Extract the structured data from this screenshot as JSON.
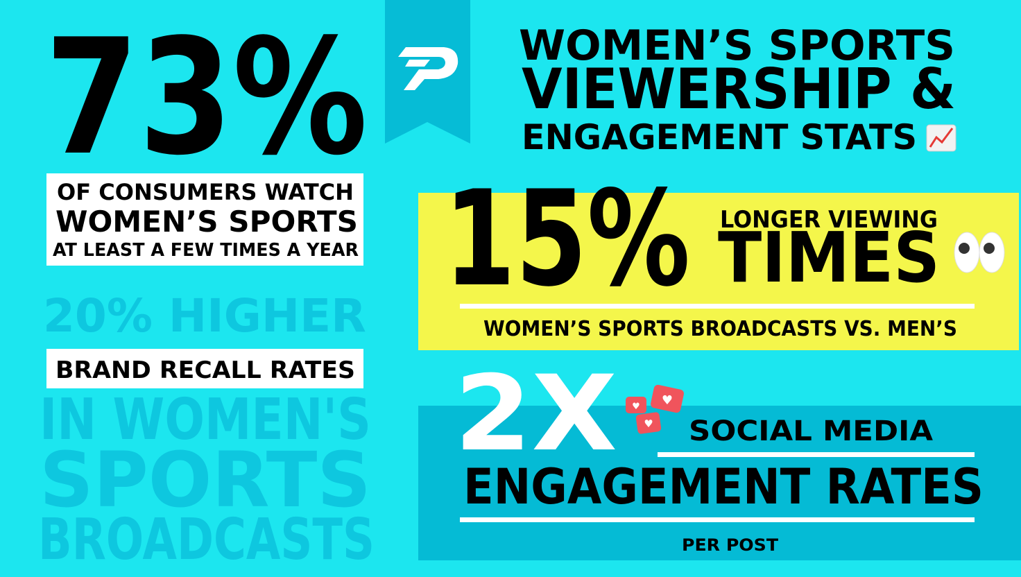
{
  "header": {
    "title": [
      "WOMEN’S SPORTS",
      "VIEWERSHIP &",
      "ENGAGEMENT STATS"
    ]
  },
  "consumers": {
    "stat": "73%",
    "lines": [
      "OF CONSUMERS WATCH",
      "WOMEN’S SPORTS",
      "AT LEAST A FEW TIMES A YEAR"
    ]
  },
  "recall": {
    "stat": "20% HIGHER",
    "label": "BRAND RECALL RATES",
    "lines": [
      "IN WOMEN'S",
      "SPORTS",
      "BROADCASTS"
    ]
  },
  "viewing": {
    "stat": "15%",
    "label_small": "LONGER VIEWING",
    "label_big": "TIMES",
    "note": "WOMEN’S SPORTS BROADCASTS VS. MEN’S"
  },
  "social": {
    "stat": "2X",
    "label_small": "SOCIAL MEDIA",
    "label_big": "ENGAGEMENT RATES",
    "note": "PER POST"
  }
}
